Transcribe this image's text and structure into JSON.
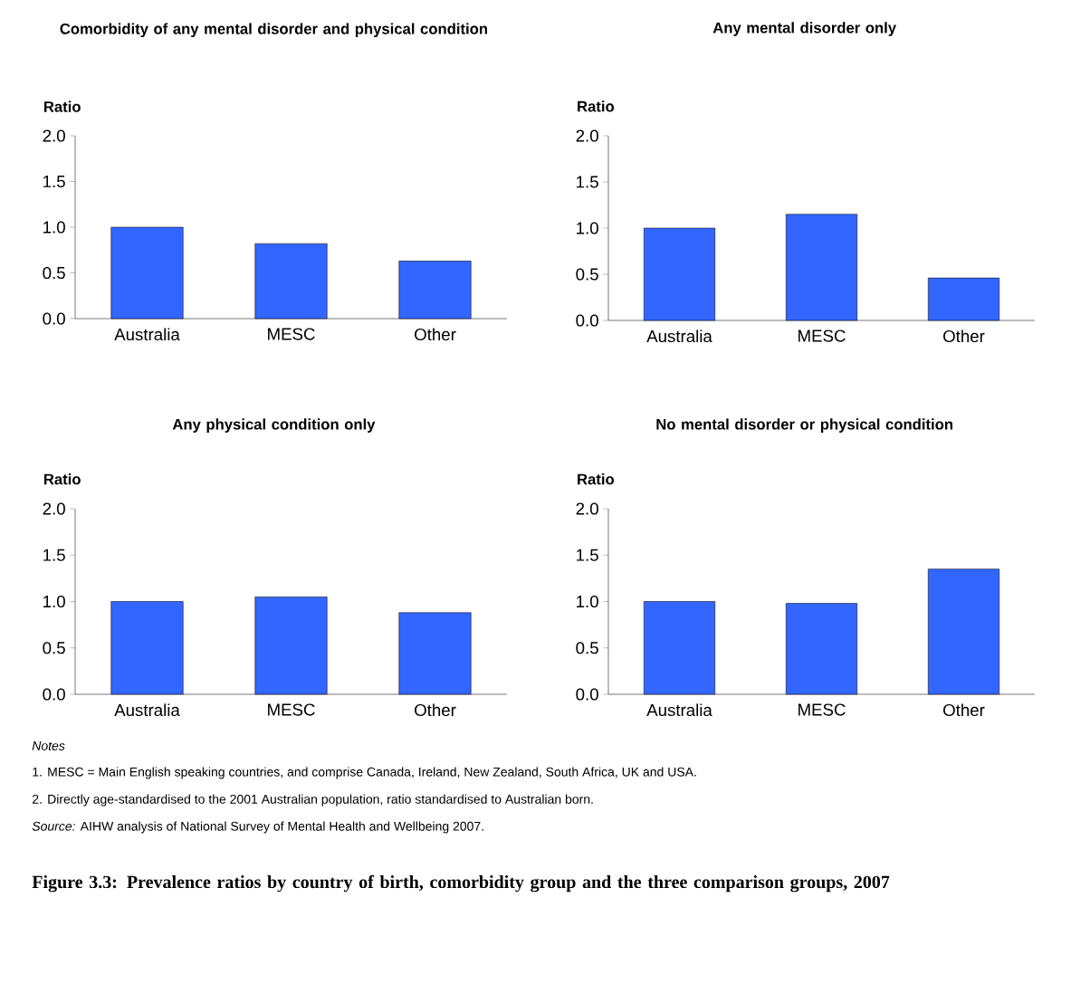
{
  "chart_data": [
    {
      "type": "bar",
      "title": "Comorbidity of any mental disorder and physical condition",
      "ylabel": "Ratio",
      "categories": [
        "Australia",
        "MESC",
        "Other"
      ],
      "values": [
        1.0,
        0.82,
        0.63
      ],
      "color": "#3366ff",
      "ylim": [
        0,
        2
      ],
      "yticks": [
        {
          "value": 0,
          "label": "0.0"
        },
        {
          "value": 0.5,
          "label": "0.5"
        },
        {
          "value": 1,
          "label": "1.0"
        },
        {
          "value": 1.5,
          "label": "1.5"
        },
        {
          "value": 2,
          "label": "2.0"
        }
      ]
    },
    {
      "type": "bar",
      "title": "Any mental disorder only",
      "ylabel": "Ratio",
      "categories": [
        "Australia",
        "MESC",
        "Other"
      ],
      "values": [
        1.0,
        1.15,
        0.46
      ],
      "color": "#3366ff",
      "ylim": [
        0,
        2
      ],
      "yticks": [
        {
          "value": 0,
          "label": "0.0"
        },
        {
          "value": 0.5,
          "label": "0.5"
        },
        {
          "value": 1,
          "label": "1.0"
        },
        {
          "value": 1.5,
          "label": "1.5"
        },
        {
          "value": 2,
          "label": "2.0"
        }
      ]
    },
    {
      "type": "bar",
      "title": "Any physical condition only",
      "ylabel": "Ratio",
      "categories": [
        "Australia",
        "MESC",
        "Other"
      ],
      "values": [
        1.0,
        1.05,
        0.88
      ],
      "color": "#3366ff",
      "ylim": [
        0,
        2
      ],
      "yticks": [
        {
          "value": 0,
          "label": "0.0"
        },
        {
          "value": 0.5,
          "label": "0.5"
        },
        {
          "value": 1,
          "label": "1.0"
        },
        {
          "value": 1.5,
          "label": "1.5"
        },
        {
          "value": 2,
          "label": "2.0"
        }
      ]
    },
    {
      "type": "bar",
      "title": "No mental disorder or physical condition",
      "ylabel": "Ratio",
      "categories": [
        "Australia",
        "MESC",
        "Other"
      ],
      "values": [
        1.0,
        0.98,
        1.35
      ],
      "color": "#3366ff",
      "ylim": [
        0,
        2
      ],
      "yticks": [
        {
          "value": 0,
          "label": "0.0"
        },
        {
          "value": 0.5,
          "label": "0.5"
        },
        {
          "value": 1,
          "label": "1.0"
        },
        {
          "value": 1.5,
          "label": "1.5"
        },
        {
          "value": 2,
          "label": "2.0"
        }
      ],
      "annotations": [
        "Notes",
        "1. MESC = Main English speaking countries, and comprise Canada, Ireland, New Zealand, South Africa, UK and USA.",
        "2. Directly age-standardised to the 2001 Australian population, ratio standardised to Australian born.",
        "*Source:* AIHW analysis of National Survey of Mental Health and Wellbeing 2007.",
        "Figure 3.3: Prevalence ratios by country of birth, comorbidity group and the three comparison groups, 2007"
      ]
    }
  ]
}
